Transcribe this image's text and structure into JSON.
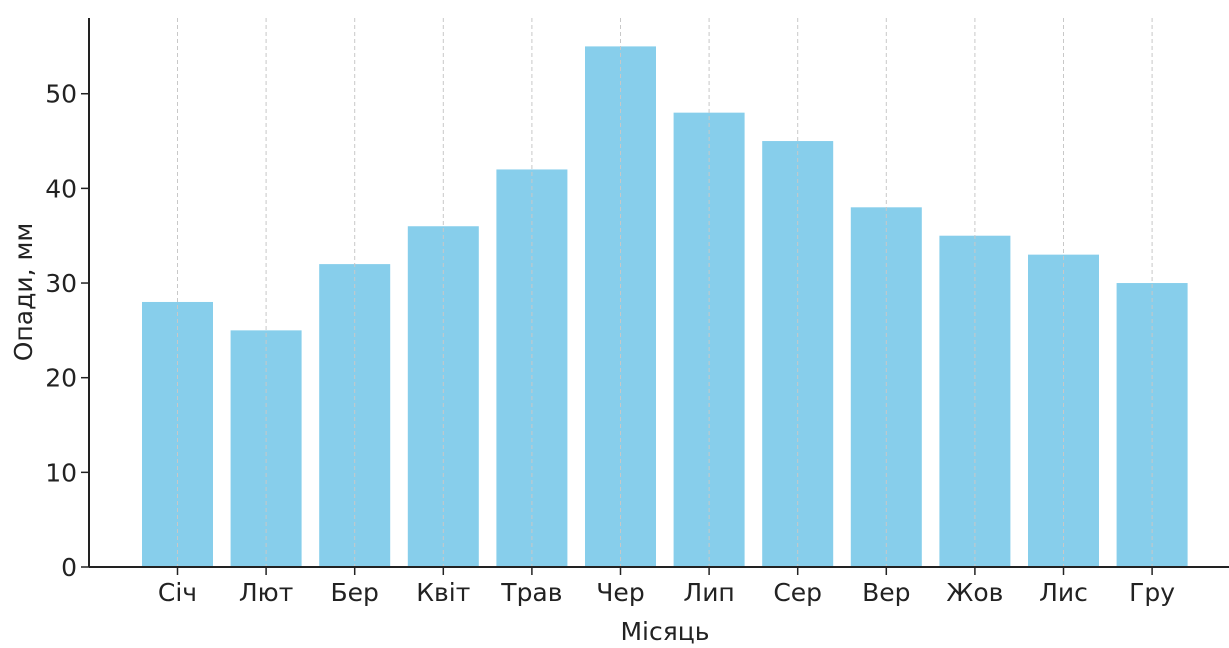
{
  "chart_data": {
    "type": "bar",
    "categories": [
      "Січ",
      "Лют",
      "Бер",
      "Квіт",
      "Трав",
      "Чер",
      "Лип",
      "Сер",
      "Вер",
      "Жов",
      "Лис",
      "Гру"
    ],
    "values": [
      28,
      25,
      32,
      36,
      42,
      55,
      48,
      45,
      38,
      35,
      33,
      30
    ],
    "xlabel": "Місяць",
    "ylabel": "Опади, мм",
    "ylim": [
      0,
      58
    ],
    "yticks": [
      0,
      10,
      20,
      30,
      40,
      50
    ],
    "grid": "x-dashed",
    "colors": {
      "bar": "#87ceeb",
      "axis": "#222222",
      "grid": "#c8c8c8"
    }
  }
}
